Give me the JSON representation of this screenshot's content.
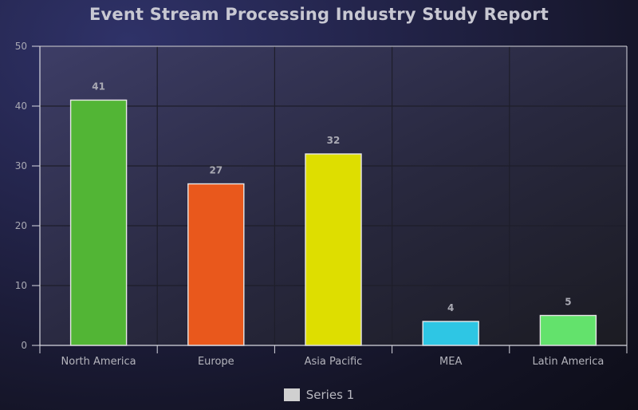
{
  "chart_data": {
    "type": "bar",
    "title": "Event Stream Processing Industry Study Report",
    "categories": [
      "North America",
      "Europe",
      "Asia Pacific",
      "MEA",
      "Latin America"
    ],
    "series": [
      {
        "name": "Series 1",
        "values": [
          41,
          27,
          32,
          4,
          5
        ],
        "colors": [
          "#52b535",
          "#e9581c",
          "#dede00",
          "#2ec6e4",
          "#63e26c"
        ]
      }
    ],
    "ylim": [
      0,
      50
    ],
    "yticks": [
      0,
      10,
      20,
      30,
      40,
      50
    ],
    "grid": true,
    "legend_position": "bottom"
  },
  "legend": {
    "swatch_color": "#d0d0d0"
  }
}
